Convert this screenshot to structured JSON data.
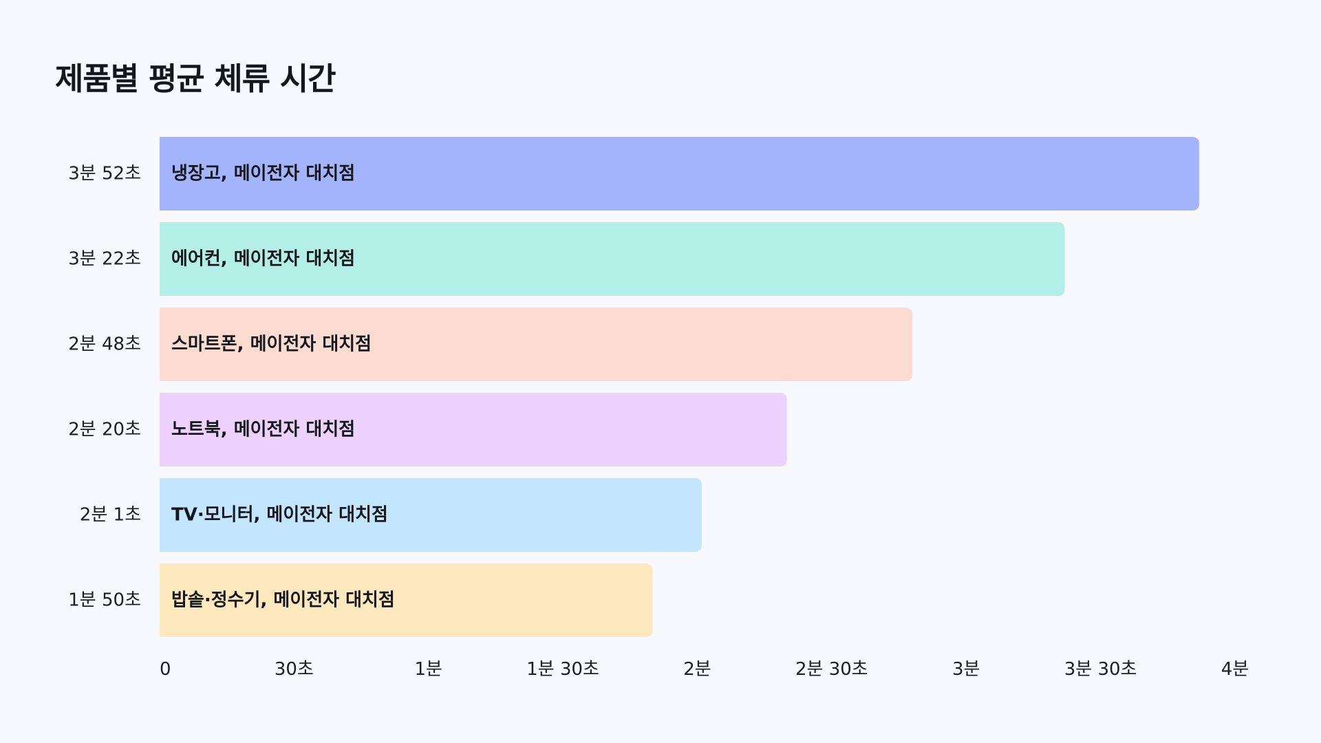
{
  "chart_data": {
    "type": "bar",
    "orientation": "horizontal",
    "title": "제품별 평균 체류 시간",
    "xlabel": "",
    "ylabel": "",
    "xlim": [
      0,
      240
    ],
    "grid": false,
    "legend": "none",
    "categories": [
      "냉장고, 메이전자 대치점",
      "에어컨, 메이전자 대치점",
      "스마트폰, 메이전자 대치점",
      "노트북, 메이전자 대치점",
      "TV·모니터, 메이전자 대치점",
      "밥솥·정수기, 메이전자 대치점"
    ],
    "values": [
      232,
      202,
      168,
      140,
      121,
      110
    ],
    "value_labels": [
      "3분 52초",
      "3분 22초",
      "2분 48초",
      "2분 20초",
      "2분 1초",
      "1분 50초"
    ],
    "colors": [
      "#a3b4fd",
      "#b3eee7",
      "#fcdcd1",
      "#edd2fd",
      "#c3e5fd",
      "#fde9bd"
    ],
    "x_ticks": [
      {
        "value": 0,
        "label": "0"
      },
      {
        "value": 30,
        "label": "30초"
      },
      {
        "value": 60,
        "label": "1분"
      },
      {
        "value": 90,
        "label": "1분 30초"
      },
      {
        "value": 120,
        "label": "2분"
      },
      {
        "value": 150,
        "label": "2분 30초"
      },
      {
        "value": 180,
        "label": "3분"
      },
      {
        "value": 210,
        "label": "3분 30초"
      },
      {
        "value": 240,
        "label": "4분"
      }
    ]
  }
}
